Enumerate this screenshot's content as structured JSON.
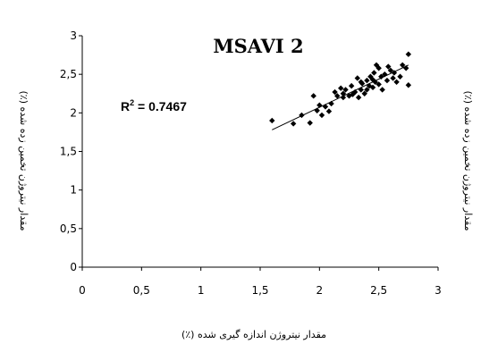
{
  "chart_data": {
    "type": "scatter",
    "title": "MSAVI 2",
    "xlabel": "مقدار نیتروژن اندازه گیری شده (٪)",
    "ylabel_left": "مقدار نیتروژن تخمین زده شده (٪)",
    "ylabel_right": "مقدار نیتروژن تخمین زده شده (٪)",
    "annotation": {
      "r2_prefix": "R",
      "r2_exp": "2",
      "r2_suffix": " = 0.7467"
    },
    "xlim": [
      0,
      3
    ],
    "ylim": [
      0,
      3
    ],
    "x_ticks": [
      "0",
      "0,5",
      "1",
      "1,5",
      "2",
      "2,5",
      "3"
    ],
    "y_ticks": [
      "0",
      "0,5",
      "1",
      "1,5",
      "2",
      "2,5",
      "3"
    ],
    "x_tick_values": [
      0,
      0.5,
      1,
      1.5,
      2,
      2.5,
      3
    ],
    "y_tick_values": [
      0,
      0.5,
      1,
      1.5,
      2,
      2.5,
      3
    ],
    "grid": false,
    "trendline": {
      "x": [
        1.6,
        2.75
      ],
      "y": [
        1.78,
        2.62
      ]
    },
    "points": [
      {
        "x": 1.6,
        "y": 1.9
      },
      {
        "x": 1.78,
        "y": 1.86
      },
      {
        "x": 1.85,
        "y": 1.97
      },
      {
        "x": 1.92,
        "y": 1.87
      },
      {
        "x": 1.95,
        "y": 2.22
      },
      {
        "x": 1.98,
        "y": 2.03
      },
      {
        "x": 2.0,
        "y": 2.1
      },
      {
        "x": 2.02,
        "y": 1.97
      },
      {
        "x": 2.05,
        "y": 2.08
      },
      {
        "x": 2.08,
        "y": 2.02
      },
      {
        "x": 2.1,
        "y": 2.12
      },
      {
        "x": 2.13,
        "y": 2.27
      },
      {
        "x": 2.15,
        "y": 2.22
      },
      {
        "x": 2.18,
        "y": 2.32
      },
      {
        "x": 2.2,
        "y": 2.2
      },
      {
        "x": 2.22,
        "y": 2.3
      },
      {
        "x": 2.25,
        "y": 2.22
      },
      {
        "x": 2.27,
        "y": 2.35
      },
      {
        "x": 2.28,
        "y": 2.24
      },
      {
        "x": 2.3,
        "y": 2.27
      },
      {
        "x": 2.32,
        "y": 2.45
      },
      {
        "x": 2.33,
        "y": 2.2
      },
      {
        "x": 2.35,
        "y": 2.3
      },
      {
        "x": 2.36,
        "y": 2.38
      },
      {
        "x": 2.38,
        "y": 2.25
      },
      {
        "x": 2.4,
        "y": 2.42
      },
      {
        "x": 2.4,
        "y": 2.3
      },
      {
        "x": 2.42,
        "y": 2.35
      },
      {
        "x": 2.43,
        "y": 2.47
      },
      {
        "x": 2.45,
        "y": 2.33
      },
      {
        "x": 2.46,
        "y": 2.52
      },
      {
        "x": 2.47,
        "y": 2.4
      },
      {
        "x": 2.48,
        "y": 2.62
      },
      {
        "x": 2.5,
        "y": 2.37
      },
      {
        "x": 2.5,
        "y": 2.58
      },
      {
        "x": 2.52,
        "y": 2.47
      },
      {
        "x": 2.53,
        "y": 2.3
      },
      {
        "x": 2.55,
        "y": 2.5
      },
      {
        "x": 2.57,
        "y": 2.42
      },
      {
        "x": 2.6,
        "y": 2.55
      },
      {
        "x": 2.62,
        "y": 2.45
      },
      {
        "x": 2.63,
        "y": 2.52
      },
      {
        "x": 2.65,
        "y": 2.4
      },
      {
        "x": 2.68,
        "y": 2.47
      },
      {
        "x": 2.7,
        "y": 2.62
      },
      {
        "x": 2.73,
        "y": 2.58
      },
      {
        "x": 2.75,
        "y": 2.76
      },
      {
        "x": 2.75,
        "y": 2.36
      },
      {
        "x": 2.2,
        "y": 2.25
      },
      {
        "x": 2.35,
        "y": 2.4
      },
      {
        "x": 2.45,
        "y": 2.43
      },
      {
        "x": 2.58,
        "y": 2.6
      }
    ]
  }
}
